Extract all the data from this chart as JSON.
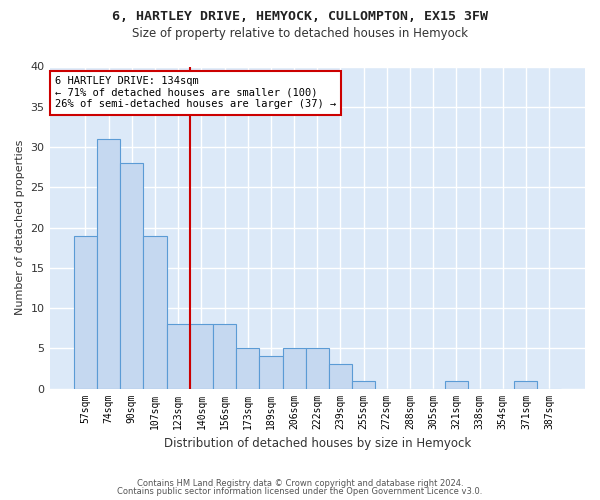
{
  "title1": "6, HARTLEY DRIVE, HEMYOCK, CULLOMPTON, EX15 3FW",
  "title2": "Size of property relative to detached houses in Hemyock",
  "xlabel": "Distribution of detached houses by size in Hemyock",
  "ylabel": "Number of detached properties",
  "categories": [
    "57sqm",
    "74sqm",
    "90sqm",
    "107sqm",
    "123sqm",
    "140sqm",
    "156sqm",
    "173sqm",
    "189sqm",
    "206sqm",
    "222sqm",
    "239sqm",
    "255sqm",
    "272sqm",
    "288sqm",
    "305sqm",
    "321sqm",
    "338sqm",
    "354sqm",
    "371sqm",
    "387sqm"
  ],
  "values": [
    19,
    31,
    28,
    19,
    8,
    8,
    8,
    5,
    4,
    5,
    5,
    3,
    1,
    0,
    0,
    0,
    1,
    0,
    0,
    1,
    0
  ],
  "bar_color": "#c5d8f0",
  "bar_edge_color": "#5b9bd5",
  "annotation_title": "6 HARTLEY DRIVE: 134sqm",
  "annotation_line1": "← 71% of detached houses are smaller (100)",
  "annotation_line2": "26% of semi-detached houses are larger (37) →",
  "annotation_box_color": "#ffffff",
  "annotation_box_edge_color": "#cc0000",
  "highlight_line_color": "#cc0000",
  "plot_bg_color": "#dce9f8",
  "grid_color": "#ffffff",
  "fig_bg_color": "#ffffff",
  "ylim": [
    0,
    40
  ],
  "yticks": [
    0,
    5,
    10,
    15,
    20,
    25,
    30,
    35,
    40
  ],
  "footer1": "Contains HM Land Registry data © Crown copyright and database right 2024.",
  "footer2": "Contains public sector information licensed under the Open Government Licence v3.0."
}
